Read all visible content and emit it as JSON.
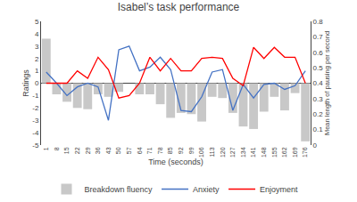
{
  "chart_data": {
    "type": "bar",
    "title": "Isabel’s task performance",
    "xlabel": "Time (seconds)",
    "ylabel": "Ratings",
    "y2label": "Mean length of pausing per second",
    "categories": [
      "1",
      "8",
      "15",
      "22",
      "29",
      "36",
      "43",
      "50",
      "57",
      "64",
      "71",
      "78",
      "85",
      "92",
      "99",
      "106",
      "113",
      "120",
      "127",
      "134",
      "141",
      "148",
      "155",
      "162",
      "169",
      "176"
    ],
    "series": [
      {
        "name": "Breakdown fluency",
        "type": "bar",
        "color": "#c8c8c8",
        "values": [
          3.6,
          -0.9,
          -1.5,
          -2.0,
          -2.1,
          -0.9,
          -1.1,
          -0.7,
          0.0,
          -0.9,
          -0.9,
          -1.7,
          -2.8,
          -2.4,
          -2.5,
          -3.1,
          -1.1,
          -1.2,
          -2.4,
          -3.5,
          -3.7,
          -2.3,
          -1.1,
          -2.2,
          -0.8,
          -4.7
        ]
      },
      {
        "name": "Anxiety",
        "type": "line",
        "color": "#4472c4",
        "values": [
          0.9,
          0.0,
          -1.0,
          -0.3,
          0.0,
          -0.3,
          -3.0,
          2.7,
          3.0,
          1.0,
          1.3,
          2.1,
          1.1,
          -2.2,
          -2.3,
          -1.1,
          0.9,
          1.1,
          -2.2,
          -0.1,
          -1.2,
          -0.1,
          0.0,
          -0.5,
          -0.2,
          1.0
        ]
      },
      {
        "name": "Enjoyment",
        "type": "line",
        "color": "#ff0000",
        "values": [
          0.0,
          0.0,
          0.0,
          1.0,
          0.4,
          2.1,
          1.1,
          -1.2,
          -1.0,
          0.0,
          2.1,
          1.0,
          2.0,
          1.0,
          1.0,
          2.0,
          2.1,
          2.0,
          0.4,
          -0.2,
          2.9,
          2.0,
          2.9,
          2.1,
          2.1,
          0.0
        ]
      }
    ],
    "ylim": [
      -5,
      5
    ],
    "yticks": [
      -5,
      -4,
      -3,
      -2,
      -1,
      0,
      1,
      2,
      3,
      4,
      5
    ],
    "y2lim": [
      0,
      0.8
    ],
    "y2ticks": [
      0,
      0.1,
      0.2,
      0.3,
      0.4,
      0.5,
      0.6,
      0.7,
      0.8
    ],
    "grid": false,
    "legend": "bottom"
  }
}
